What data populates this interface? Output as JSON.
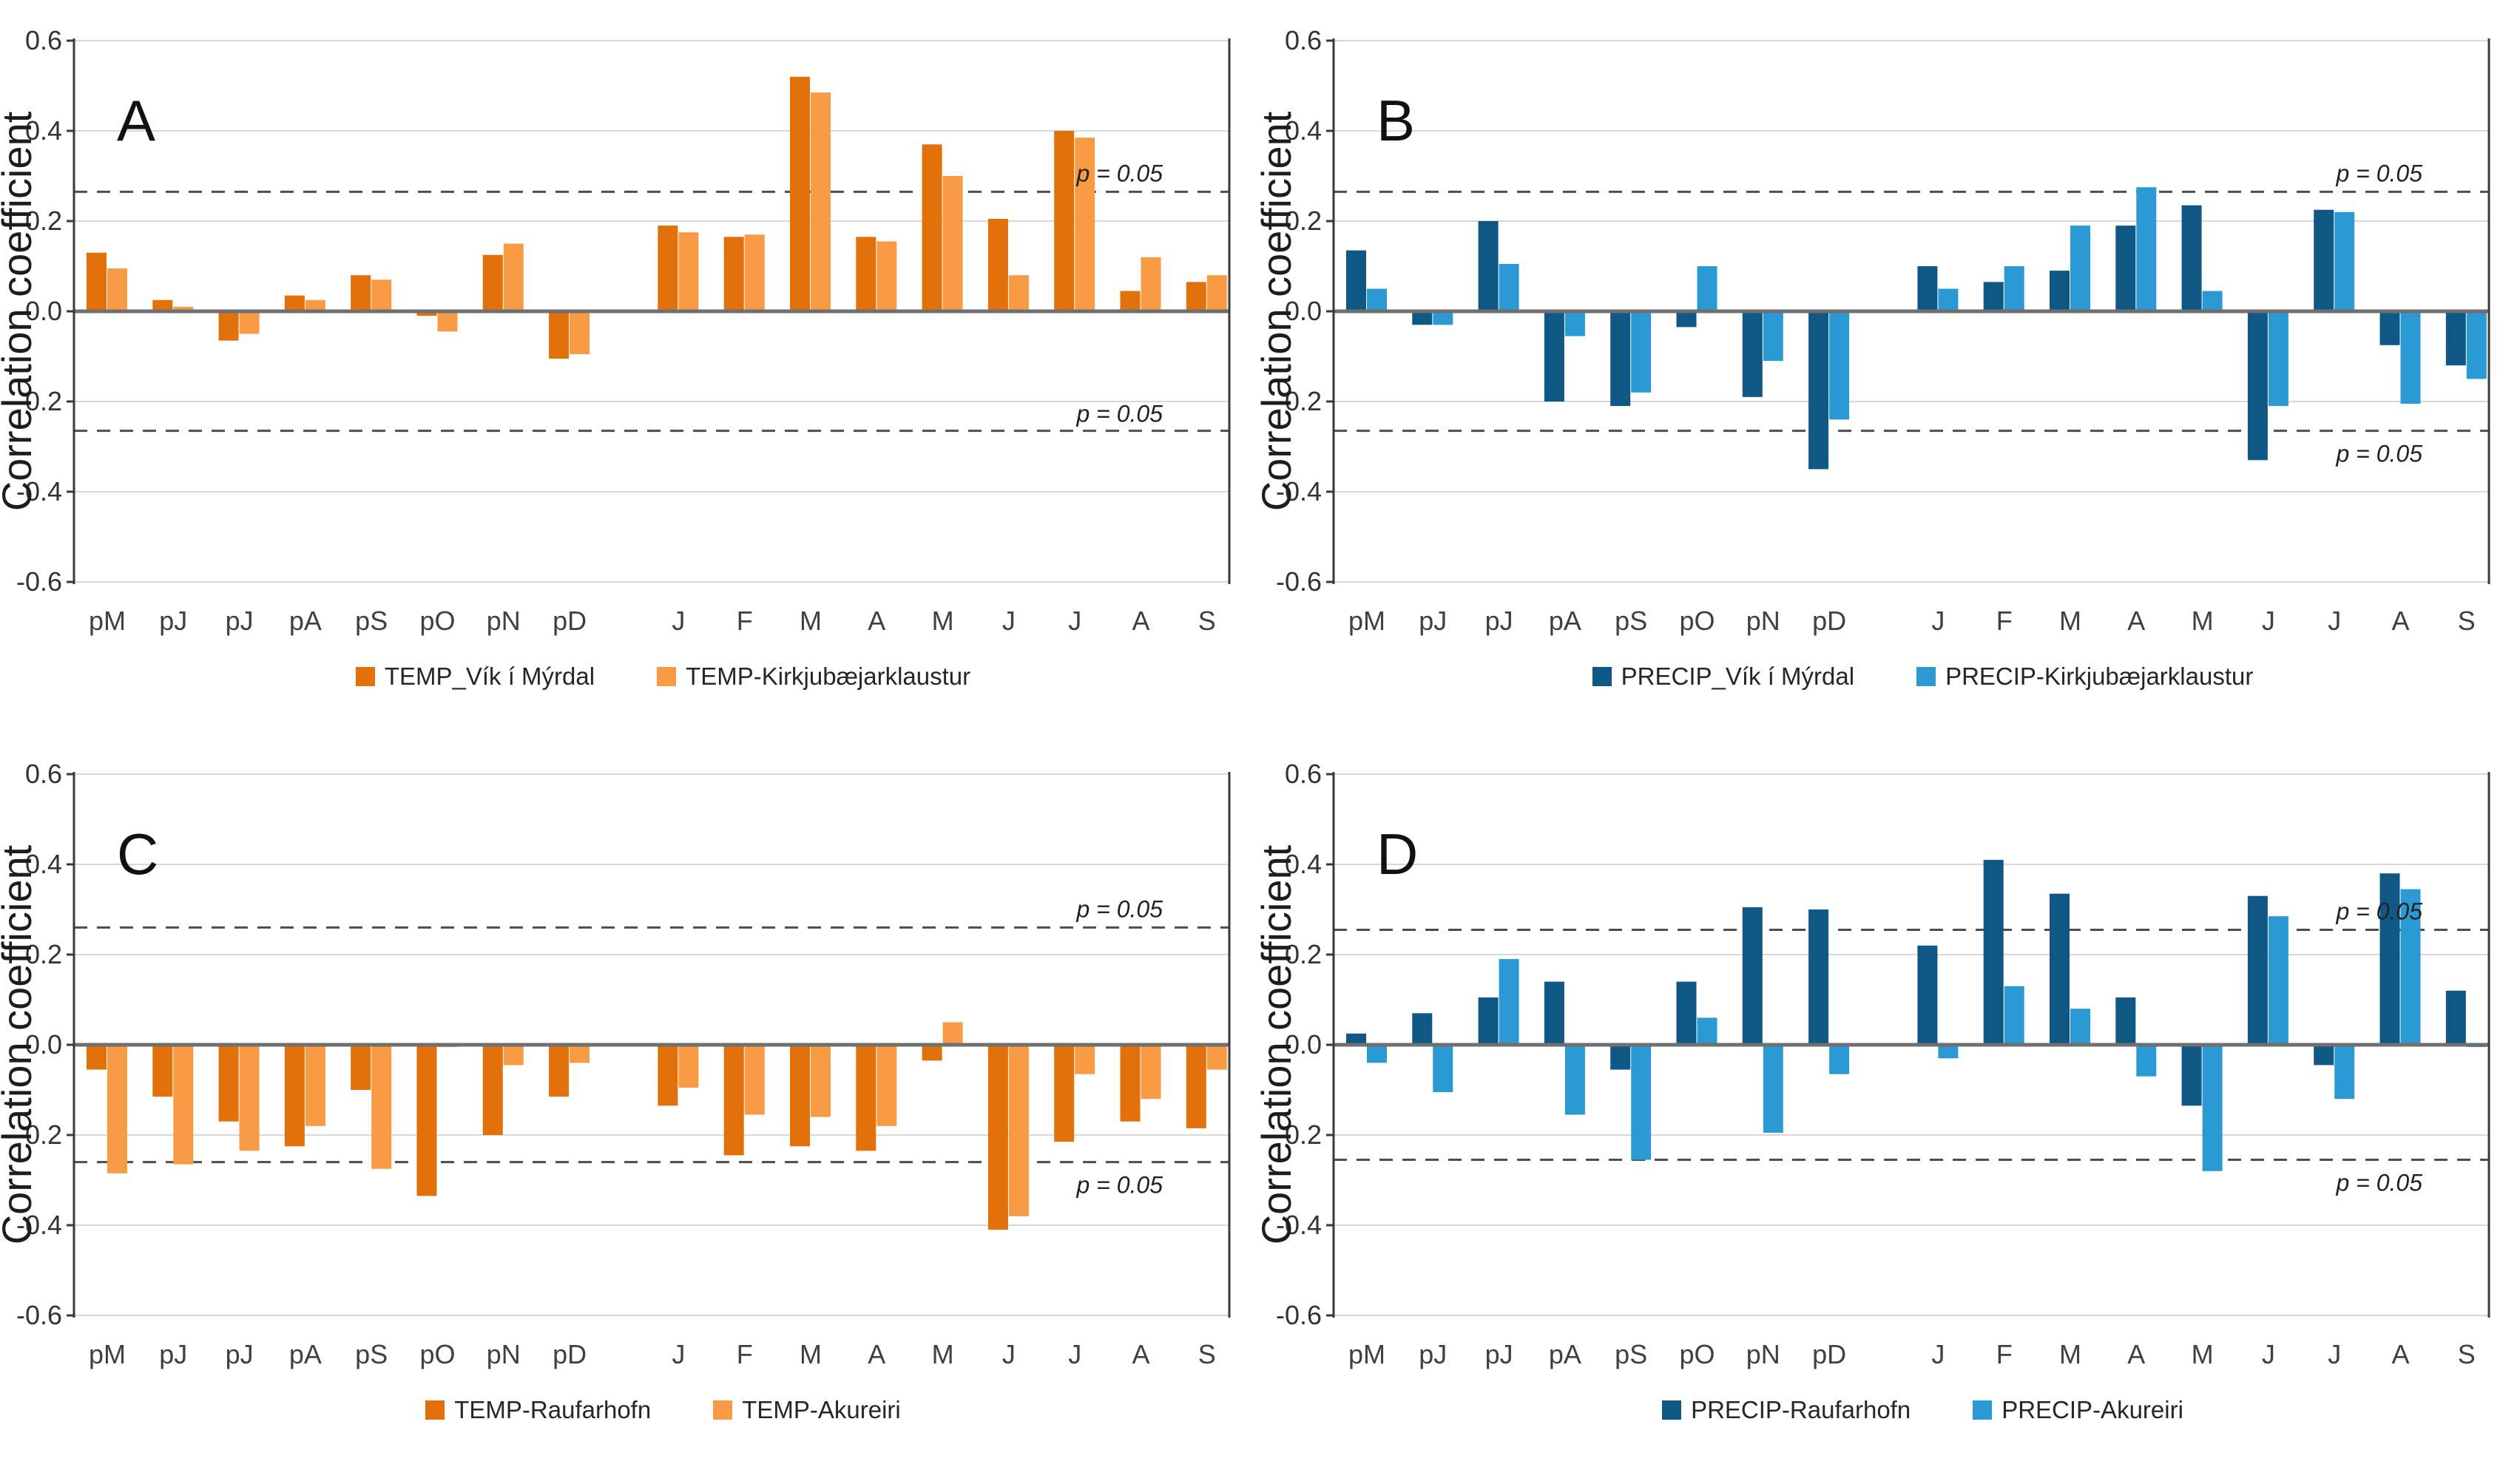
{
  "figure": {
    "background": "#ffffff",
    "ylabel": "Correlation coefficient",
    "y_tick_labels": [
      "0.6",
      "0.4",
      "0.2",
      "0.0",
      "-0.2",
      "-0.4",
      "-0.6"
    ],
    "significance_label": "p = 0.05"
  },
  "colors": {
    "dark_orange": "#E2700B",
    "light_orange": "#F89B44",
    "dark_blue": "#0F5784",
    "light_blue": "#2B99D3",
    "gridline": "#D8D8D8",
    "zero_line": "#6F6F6F",
    "axis": "#3A3A3A",
    "dashed_line": "#4D4D4D",
    "text": "#333333"
  },
  "chart_data": [
    {
      "type": "bar",
      "label": "A",
      "ylabel": "Correlation coefficient",
      "ylim": [
        -0.6,
        0.6
      ],
      "y_ticks": [
        0.6,
        0.4,
        0.2,
        0.0,
        -0.2,
        -0.4,
        -0.6
      ],
      "grid": true,
      "legend_position": "bottom",
      "significance_level": 0.265,
      "sig_label": "p = 0.05",
      "lower_label_above": true,
      "categories": [
        "pM",
        "pJ",
        "pJ",
        "pA",
        "pS",
        "pO",
        "pN",
        "pD",
        "J",
        "F",
        "M",
        "A",
        "M",
        "J",
        "J",
        "A",
        "S"
      ],
      "series": [
        {
          "name": "TEMP_Vík í Mýrdal",
          "color": "#E2700B",
          "values": [
            0.13,
            0.025,
            -0.065,
            0.035,
            0.08,
            -0.01,
            0.125,
            -0.105,
            0.19,
            0.165,
            0.52,
            0.165,
            0.37,
            0.205,
            0.4,
            0.045,
            0.065
          ]
        },
        {
          "name": "TEMP-Kirkjubæjarklaustur",
          "color": "#F89B44",
          "values": [
            0.095,
            0.01,
            -0.05,
            0.025,
            0.07,
            -0.045,
            0.15,
            -0.095,
            0.175,
            0.17,
            0.485,
            0.155,
            0.3,
            0.08,
            0.385,
            0.12,
            0.08
          ]
        }
      ]
    },
    {
      "type": "bar",
      "label": "B",
      "ylabel": "Correlation coefficient",
      "ylim": [
        -0.6,
        0.6
      ],
      "y_ticks": [
        0.6,
        0.4,
        0.2,
        0.0,
        -0.2,
        -0.4,
        -0.6
      ],
      "grid": true,
      "legend_position": "bottom",
      "significance_level": 0.265,
      "sig_label": "p = 0.05",
      "lower_label_above": false,
      "categories": [
        "pM",
        "pJ",
        "pJ",
        "pA",
        "pS",
        "pO",
        "pN",
        "pD",
        "J",
        "F",
        "M",
        "A",
        "M",
        "J",
        "J",
        "A",
        "S"
      ],
      "series": [
        {
          "name": "PRECIP_Vík í Mýrdal",
          "color": "#0F5784",
          "values": [
            0.135,
            -0.03,
            0.2,
            -0.2,
            -0.21,
            -0.035,
            -0.19,
            -0.35,
            0.1,
            0.065,
            0.09,
            0.19,
            0.235,
            -0.33,
            0.225,
            -0.075,
            -0.12
          ]
        },
        {
          "name": "PRECIP-Kirkjubæjarklaustur",
          "color": "#2B99D3",
          "values": [
            0.05,
            -0.03,
            0.105,
            -0.055,
            -0.18,
            0.1,
            -0.11,
            -0.24,
            0.05,
            0.1,
            0.19,
            0.275,
            0.045,
            -0.21,
            0.22,
            -0.205,
            -0.15
          ]
        }
      ]
    },
    {
      "type": "bar",
      "label": "C",
      "ylabel": "Correlation coefficient",
      "ylim": [
        -0.6,
        0.6
      ],
      "y_ticks": [
        0.6,
        0.4,
        0.2,
        0.0,
        -0.2,
        -0.4,
        -0.6
      ],
      "grid": true,
      "legend_position": "bottom",
      "significance_level": 0.26,
      "sig_label": "p = 0.05",
      "lower_label_above": false,
      "categories": [
        "pM",
        "pJ",
        "pJ",
        "pA",
        "pS",
        "pO",
        "pN",
        "pD",
        "J",
        "F",
        "M",
        "A",
        "M",
        "J",
        "J",
        "A",
        "S"
      ],
      "series": [
        {
          "name": "TEMP-Raufarhofn",
          "color": "#E2700B",
          "values": [
            -0.055,
            -0.115,
            -0.17,
            -0.225,
            -0.1,
            -0.335,
            -0.2,
            -0.115,
            -0.135,
            -0.245,
            -0.225,
            -0.235,
            -0.035,
            -0.41,
            -0.215,
            -0.17,
            -0.185
          ]
        },
        {
          "name": "TEMP-Akureiri",
          "color": "#F89B44",
          "values": [
            -0.285,
            -0.265,
            -0.235,
            -0.18,
            -0.275,
            -0.005,
            -0.045,
            -0.04,
            -0.095,
            -0.155,
            -0.16,
            -0.18,
            0.05,
            -0.38,
            -0.065,
            -0.12,
            -0.055
          ]
        }
      ]
    },
    {
      "type": "bar",
      "label": "D",
      "ylabel": "Correlation coefficient",
      "ylim": [
        -0.6,
        0.6
      ],
      "y_ticks": [
        0.6,
        0.4,
        0.2,
        0.0,
        -0.2,
        -0.4,
        -0.6
      ],
      "grid": true,
      "legend_position": "bottom",
      "significance_level": 0.255,
      "sig_label": "p = 0.05",
      "lower_label_above": false,
      "categories": [
        "pM",
        "pJ",
        "pJ",
        "pA",
        "pS",
        "pO",
        "pN",
        "pD",
        "J",
        "F",
        "M",
        "A",
        "M",
        "J",
        "J",
        "A",
        "S"
      ],
      "series": [
        {
          "name": "PRECIP-Raufarhofn",
          "color": "#0F5784",
          "values": [
            0.025,
            0.07,
            0.105,
            0.14,
            -0.055,
            0.14,
            0.305,
            0.3,
            0.22,
            0.41,
            0.335,
            0.105,
            -0.135,
            0.33,
            -0.045,
            0.38,
            0.12
          ]
        },
        {
          "name": "PRECIP-Akureiri",
          "color": "#2B99D3",
          "values": [
            -0.04,
            -0.105,
            0.19,
            -0.155,
            -0.255,
            0.06,
            -0.195,
            -0.065,
            -0.03,
            0.13,
            0.08,
            -0.07,
            -0.28,
            0.285,
            -0.12,
            0.345,
            -0.005
          ]
        }
      ]
    }
  ]
}
